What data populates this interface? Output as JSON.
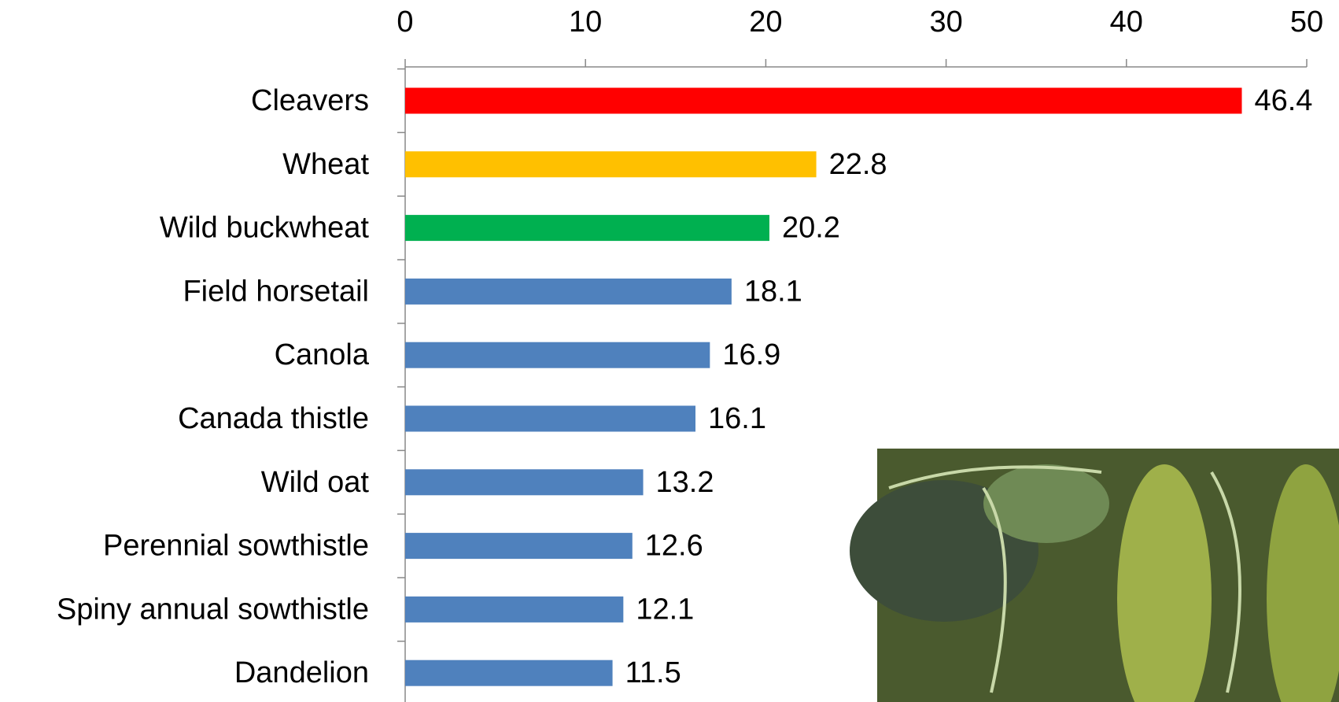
{
  "chart_data": {
    "type": "bar",
    "categories": [
      "Cleavers",
      "Wheat",
      "Wild buckwheat",
      "Field horsetail",
      "Canola",
      "Canada thistle",
      "Wild oat",
      "Perennial sowthistle",
      "Spiny annual sowthistle",
      "Dandelion"
    ],
    "values": [
      46.4,
      22.8,
      20.2,
      18.1,
      16.9,
      16.1,
      13.2,
      12.6,
      12.1,
      11.5
    ],
    "colors": [
      "#ff0000",
      "#ffc000",
      "#00b050",
      "#4f81bd",
      "#4f81bd",
      "#4f81bd",
      "#4f81bd",
      "#4f81bd",
      "#4f81bd",
      "#4f81bd"
    ],
    "xlim": [
      0,
      50
    ],
    "xticks": [
      0,
      10,
      20,
      30,
      40,
      50
    ]
  }
}
